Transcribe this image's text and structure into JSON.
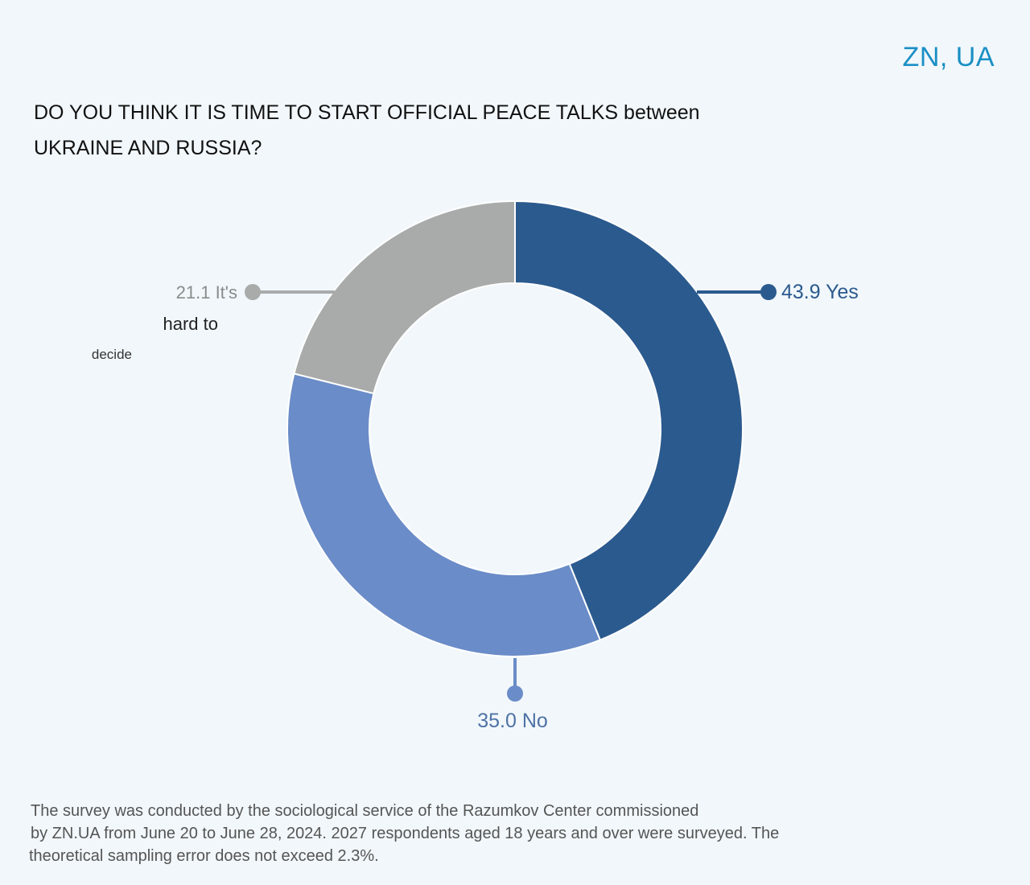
{
  "brand": "ZN, UA",
  "title_line1": "DO YOU THINK IT IS TIME TO START OFFICIAL PEACE TALKS between",
  "title_line2": "UKRAINE AND RUSSIA?",
  "footnote": [
    "The survey was conducted by the sociological service of the Razumkov Center commissioned",
    "by ZN.UA from June 20 to June 28, 2024. 2027 respondents aged 18 years and over were surveyed. The",
    "theoretical sampling error does not exceed 2.3%."
  ],
  "chart_data": {
    "type": "pie",
    "variant": "donut",
    "title": "DO YOU THINK IT IS TIME TO START OFFICIAL PEACE TALKS between UKRAINE AND RUSSIA?",
    "categories": [
      "Yes",
      "No",
      "It's hard to decide"
    ],
    "values": [
      43.9,
      35.0,
      21.1
    ],
    "colors": [
      "#2b5a8e",
      "#6a8cc8",
      "#a9abab"
    ],
    "labels": [
      {
        "lines": [
          "43.9 Yes"
        ]
      },
      {
        "lines": [
          "35.0 No"
        ]
      },
      {
        "lines": [
          "21.1 It's",
          "hard to",
          "decide"
        ]
      }
    ],
    "legend": "none"
  }
}
